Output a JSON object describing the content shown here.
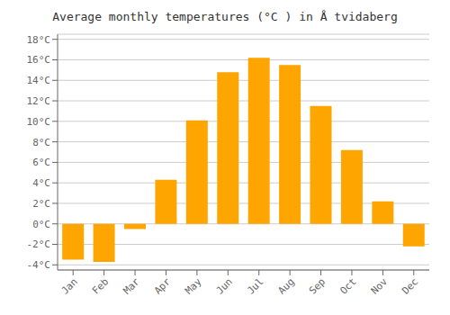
{
  "chart_data": {
    "type": "bar",
    "title": "Average monthly temperatures (°C ) in Å tvidaberg",
    "categories": [
      "Jan",
      "Feb",
      "Mar",
      "Apr",
      "May",
      "Jun",
      "Jul",
      "Aug",
      "Sep",
      "Oct",
      "Nov",
      "Dec"
    ],
    "values": [
      -3.5,
      -3.7,
      -0.5,
      4.3,
      10.1,
      14.8,
      16.2,
      15.5,
      11.5,
      7.2,
      2.2,
      -2.2
    ],
    "color": "#FFA500",
    "ylim": [
      -4.5,
      18.5
    ],
    "yticks": [
      {
        "value": -4,
        "label": "-4°C"
      },
      {
        "value": -2,
        "label": "-2°C"
      },
      {
        "value": 0,
        "label": "0°C"
      },
      {
        "value": 2,
        "label": "2°C"
      },
      {
        "value": 4,
        "label": "4°C"
      },
      {
        "value": 6,
        "label": "6°C"
      },
      {
        "value": 8,
        "label": "8°C"
      },
      {
        "value": 10,
        "label": "10°C"
      },
      {
        "value": 12,
        "label": "12°C"
      },
      {
        "value": 14,
        "label": "14°C"
      },
      {
        "value": 16,
        "label": "16°C"
      },
      {
        "value": 18,
        "label": "18°C"
      }
    ],
    "grid": true
  }
}
